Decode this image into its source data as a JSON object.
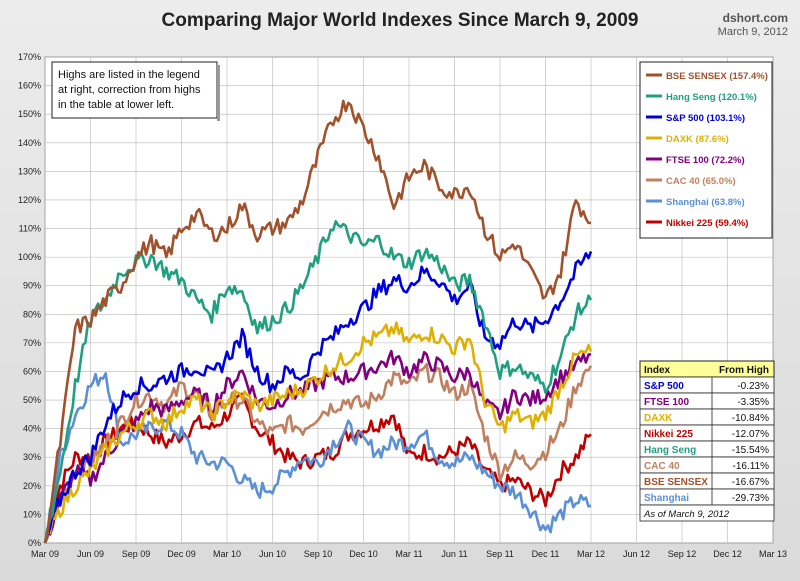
{
  "chart_data": {
    "type": "line",
    "title": "Comparing Major World Indexes Since March 9, 2009",
    "source": "dshort.com",
    "date": "March 9, 2012",
    "note_lines": [
      "Highs are listed in the legend",
      "at right, correction from highs",
      "in the table at lower left."
    ],
    "ylim": [
      0,
      170
    ],
    "y_ticks": [
      "0%",
      "10%",
      "20%",
      "30%",
      "40%",
      "50%",
      "60%",
      "70%",
      "80%",
      "90%",
      "100%",
      "110%",
      "120%",
      "130%",
      "140%",
      "150%",
      "160%",
      "170%"
    ],
    "x_ticks": [
      "Mar 09",
      "Jun 09",
      "Sep 09",
      "Dec 09",
      "Mar 10",
      "Jun 10",
      "Sep 10",
      "Dec 10",
      "Mar 11",
      "Jun 11",
      "Sep 11",
      "Dec 11",
      "Mar 12",
      "Jun 12",
      "Sep 12",
      "Dec 12",
      "Mar 13"
    ],
    "x": [
      "Mar 09",
      "Apr 09",
      "May 09",
      "Jun 09",
      "Jul 09",
      "Aug 09",
      "Sep 09",
      "Oct 09",
      "Nov 09",
      "Dec 09",
      "Jan 10",
      "Feb 10",
      "Mar 10",
      "Apr 10",
      "May 10",
      "Jun 10",
      "Jul 10",
      "Aug 10",
      "Sep 10",
      "Oct 10",
      "Nov 10",
      "Dec 10",
      "Jan 11",
      "Feb 11",
      "Mar 11",
      "Apr 11",
      "May 11",
      "Jun 11",
      "Jul 11",
      "Aug 11",
      "Sep 11",
      "Oct 11",
      "Nov 11",
      "Dec 11",
      "Jan 12",
      "Feb 12",
      "Mar 12"
    ],
    "series": [
      {
        "name": "BSE SENSEX (157.4%)",
        "color": "#a0522d",
        "values": [
          0,
          35,
          75,
          78,
          85,
          90,
          100,
          105,
          100,
          110,
          115,
          108,
          110,
          118,
          108,
          110,
          112,
          120,
          135,
          148,
          155,
          145,
          135,
          118,
          128,
          132,
          125,
          122,
          125,
          110,
          100,
          105,
          95,
          85,
          95,
          120,
          112
        ]
      },
      {
        "name": "Hang Seng (120.1%)",
        "color": "#20a080",
        "values": [
          0,
          25,
          55,
          78,
          85,
          95,
          98,
          100,
          95,
          92,
          85,
          80,
          90,
          88,
          75,
          78,
          82,
          90,
          100,
          112,
          108,
          104,
          106,
          100,
          98,
          102,
          98,
          90,
          92,
          78,
          60,
          62,
          58,
          55,
          65,
          80,
          85
        ]
      },
      {
        "name": "S&P 500 (103.1%)",
        "color": "#0000dd",
        "values": [
          0,
          15,
          25,
          30,
          42,
          50,
          55,
          55,
          58,
          60,
          62,
          58,
          65,
          72,
          60,
          55,
          60,
          58,
          68,
          72,
          78,
          82,
          88,
          92,
          90,
          95,
          92,
          85,
          90,
          72,
          70,
          78,
          75,
          78,
          85,
          95,
          102
        ]
      },
      {
        "name": "DAXK (87.6%)",
        "color": "#e0b000",
        "values": [
          0,
          12,
          20,
          25,
          32,
          38,
          42,
          45,
          42,
          48,
          50,
          45,
          50,
          52,
          48,
          50,
          52,
          54,
          58,
          62,
          65,
          70,
          72,
          75,
          70,
          74,
          72,
          68,
          72,
          50,
          40,
          45,
          42,
          45,
          55,
          65,
          67
        ]
      },
      {
        "name": "FTSE 100 (72.2%)",
        "color": "#800080",
        "values": [
          0,
          15,
          25,
          22,
          30,
          38,
          42,
          48,
          46,
          50,
          52,
          48,
          55,
          60,
          50,
          48,
          52,
          53,
          56,
          58,
          58,
          60,
          62,
          65,
          60,
          64,
          62,
          58,
          60,
          48,
          45,
          52,
          50,
          52,
          58,
          62,
          66
        ]
      },
      {
        "name": "CAC 40 (65.0%)",
        "color": "#c08060",
        "values": [
          0,
          15,
          25,
          28,
          35,
          42,
          50,
          52,
          48,
          55,
          52,
          45,
          50,
          50,
          42,
          38,
          42,
          40,
          45,
          48,
          50,
          48,
          52,
          58,
          55,
          60,
          58,
          52,
          55,
          38,
          25,
          30,
          28,
          32,
          40,
          55,
          62
        ]
      },
      {
        "name": "Shanghai (63.8%)",
        "color": "#5b8fd6",
        "values": [
          0,
          30,
          45,
          55,
          60,
          35,
          38,
          40,
          42,
          38,
          30,
          28,
          28,
          22,
          18,
          20,
          25,
          30,
          28,
          35,
          40,
          35,
          32,
          35,
          35,
          38,
          30,
          28,
          30,
          25,
          20,
          18,
          12,
          5,
          10,
          15,
          13
        ]
      },
      {
        "name": "Nikkei 225 (59.4%)",
        "color": "#c00000",
        "values": [
          0,
          20,
          30,
          30,
          35,
          40,
          42,
          38,
          35,
          38,
          42,
          40,
          45,
          50,
          40,
          35,
          30,
          28,
          30,
          32,
          38,
          40,
          42,
          45,
          30,
          32,
          30,
          32,
          35,
          25,
          20,
          22,
          18,
          15,
          25,
          30,
          38
        ]
      }
    ],
    "table": {
      "header": [
        "Index",
        "From High"
      ],
      "rows": [
        {
          "name": "S&P 500",
          "value": "-0.23%",
          "color": "#0000dd"
        },
        {
          "name": "FTSE 100",
          "value": "-3.35%",
          "color": "#800080"
        },
        {
          "name": "DAXK",
          "value": "-10.84%",
          "color": "#e0b000"
        },
        {
          "name": "Nikkei 225",
          "value": "-12.07%",
          "color": "#c00000"
        },
        {
          "name": "Hang Seng",
          "value": "-15.54%",
          "color": "#20a080"
        },
        {
          "name": "CAC 40",
          "value": "-16.11%",
          "color": "#c08060"
        },
        {
          "name": "BSE SENSEX",
          "value": "-16.67%",
          "color": "#a0522d"
        },
        {
          "name": "Shanghai",
          "value": "-29.73%",
          "color": "#5b8fd6"
        }
      ],
      "footnote": "As of March 9, 2012",
      "header_bg": "#ffff99"
    }
  }
}
